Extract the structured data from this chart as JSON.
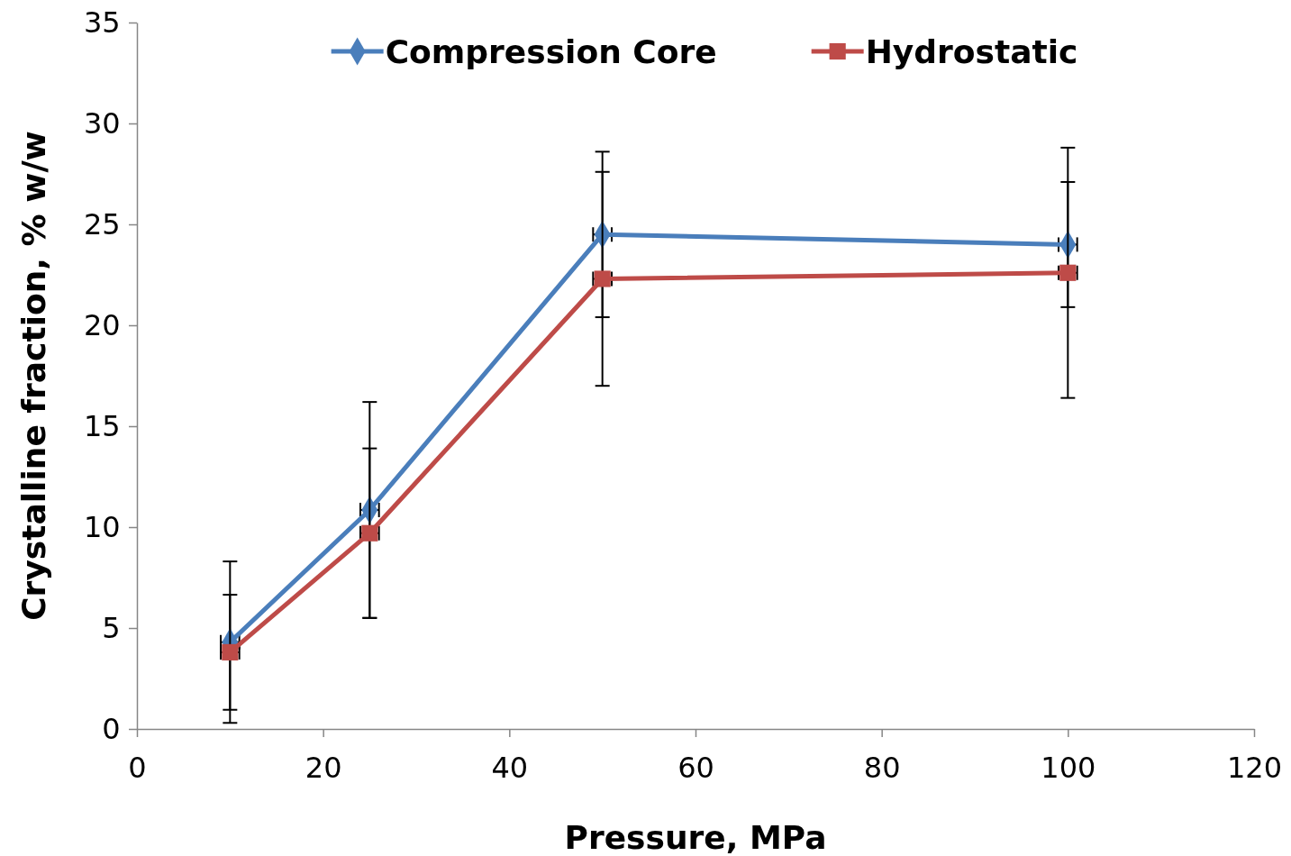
{
  "chart_data": {
    "type": "line",
    "xlabel": "Pressure, MPa",
    "ylabel": "Crystalline fraction, % w/w",
    "x": [
      10,
      25,
      50,
      100
    ],
    "series": [
      {
        "name": "Compression Core",
        "color": "#4a7ebb",
        "marker": "diamond",
        "values": [
          4.3,
          10.85,
          24.5,
          24.0
        ],
        "errors": [
          4.0,
          5.35,
          4.1,
          3.1
        ],
        "xerrors": [
          1,
          1,
          1,
          1
        ]
      },
      {
        "name": "Hydrostatic",
        "color": "#be4b48",
        "marker": "square",
        "values": [
          3.8,
          9.7,
          22.3,
          22.6
        ],
        "errors": [
          2.85,
          4.2,
          5.3,
          6.2
        ],
        "xerrors": [
          1,
          1,
          1,
          1
        ]
      }
    ],
    "xlim": [
      0,
      120
    ],
    "xticks": [
      0,
      20,
      40,
      60,
      80,
      100,
      120
    ],
    "ylim": [
      0,
      35
    ],
    "yticks": [
      0,
      5,
      10,
      15,
      20,
      25,
      30,
      35
    ],
    "grid": false,
    "legend": "top",
    "line_style": "solid"
  }
}
